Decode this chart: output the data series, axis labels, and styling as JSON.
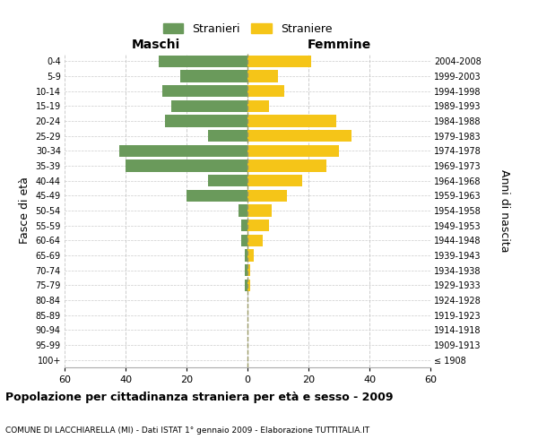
{
  "age_groups": [
    "100+",
    "95-99",
    "90-94",
    "85-89",
    "80-84",
    "75-79",
    "70-74",
    "65-69",
    "60-64",
    "55-59",
    "50-54",
    "45-49",
    "40-44",
    "35-39",
    "30-34",
    "25-29",
    "20-24",
    "15-19",
    "10-14",
    "5-9",
    "0-4"
  ],
  "birth_years": [
    "≤ 1908",
    "1909-1913",
    "1914-1918",
    "1919-1923",
    "1924-1928",
    "1929-1933",
    "1934-1938",
    "1939-1943",
    "1944-1948",
    "1949-1953",
    "1954-1958",
    "1959-1963",
    "1964-1968",
    "1969-1973",
    "1974-1978",
    "1979-1983",
    "1984-1988",
    "1989-1993",
    "1994-1998",
    "1999-2003",
    "2004-2008"
  ],
  "males": [
    0,
    0,
    0,
    0,
    0,
    1,
    1,
    1,
    2,
    2,
    3,
    20,
    13,
    40,
    42,
    13,
    27,
    25,
    28,
    22,
    29
  ],
  "females": [
    0,
    0,
    0,
    0,
    0,
    1,
    1,
    2,
    5,
    7,
    8,
    13,
    18,
    26,
    30,
    34,
    29,
    7,
    12,
    10,
    21
  ],
  "male_color": "#6a9a5b",
  "female_color": "#f5c518",
  "background_color": "#ffffff",
  "grid_color": "#cccccc",
  "title": "Popolazione per cittadinanza straniera per età e sesso - 2009",
  "subtitle": "COMUNE DI LACCHIARELLA (MI) - Dati ISTAT 1° gennaio 2009 - Elaborazione TUTTITALIA.IT",
  "xlabel_left": "Maschi",
  "xlabel_right": "Femmine",
  "ylabel_left": "Fasce di età",
  "ylabel_right": "Anni di nascita",
  "legend_male": "Stranieri",
  "legend_female": "Straniere",
  "xlim": 60,
  "bar_height": 0.8
}
